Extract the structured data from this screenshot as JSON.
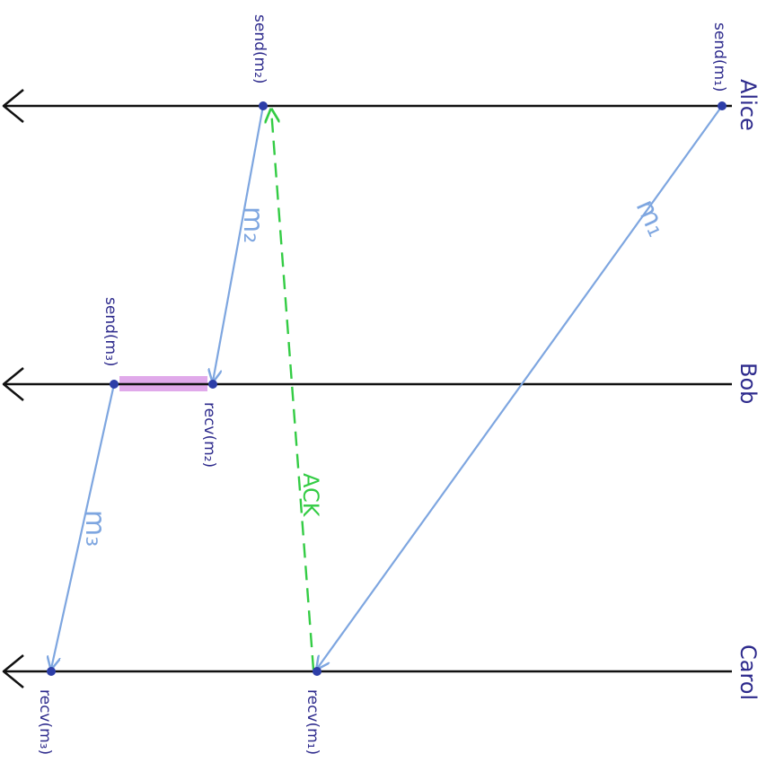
{
  "colors": {
    "timeline": "#111111",
    "process_label": "#2d2a8c",
    "message": "#7ea6e0",
    "ack": "#33cc44",
    "highlight": "#dda0e8",
    "event_dot": "#2d3ea8"
  },
  "processes": [
    {
      "name": "Alice"
    },
    {
      "name": "Bob"
    },
    {
      "name": "Carol"
    }
  ],
  "events": {
    "send_m1": "send(m₁)",
    "send_m2": "send(m₂)",
    "recv_m2": "recv(m₂)",
    "send_m3": "send(m₃)",
    "recv_m1": "recv(m₁)",
    "recv_m3": "recv(m₃)"
  },
  "messages": [
    {
      "label": "m₁"
    },
    {
      "label": "m₂"
    },
    {
      "label": "m₃"
    },
    {
      "label": "ACK"
    }
  ]
}
